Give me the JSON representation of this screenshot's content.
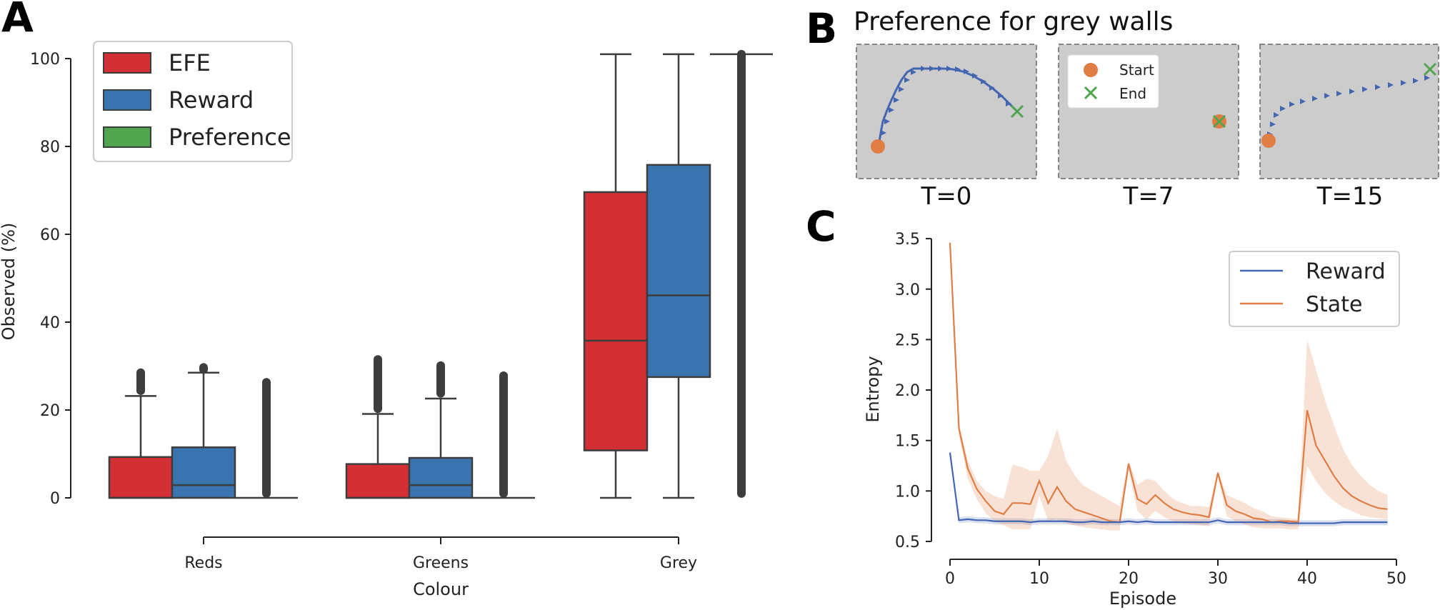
{
  "panels": {
    "a": {
      "letter": "A"
    },
    "b": {
      "letter": "B",
      "title": "Preference for grey walls",
      "snapshots": [
        {
          "label": "T=0"
        },
        {
          "label": "T=7"
        },
        {
          "label": "T=15"
        }
      ],
      "legend": {
        "start": "Start",
        "end": "End"
      }
    },
    "c": {
      "letter": "C"
    }
  },
  "colors": {
    "efe": "#d23034",
    "reward": "#3b75af",
    "preference": "#4fa64f",
    "state": "#e07d45",
    "reward_line": "#4466b0",
    "map_bg": "#cccccc",
    "traj": "#4466b0",
    "start": "#e07d45",
    "end": "#4fa64f"
  },
  "chart_data": [
    {
      "type": "box",
      "xlabel": "Colour",
      "ylabel": "Observed (%)",
      "ylim": [
        0,
        100
      ],
      "yticks": [
        0,
        20,
        40,
        60,
        80,
        100
      ],
      "categories": [
        "Reds",
        "Greens",
        "Grey"
      ],
      "legend": {
        "placement": "top-left",
        "entries": [
          "EFE",
          "Reward",
          "Preference"
        ]
      },
      "series": [
        {
          "name": "EFE",
          "boxes": [
            {
              "min": 0,
              "q1": 0,
              "median": 0,
              "q3": 9.3,
              "max": 23.2,
              "outliers_to": 28.5
            },
            {
              "min": 0,
              "q1": 0,
              "median": 0,
              "q3": 7.7,
              "max": 19.1,
              "outliers_to": 31.5
            },
            {
              "min": 0,
              "q1": 10.8,
              "median": 35.8,
              "q3": 69.6,
              "max": 101,
              "outliers_to": null
            }
          ]
        },
        {
          "name": "Reward",
          "boxes": [
            {
              "min": 0,
              "q1": 0,
              "median": 2.9,
              "q3": 11.5,
              "max": 28.5,
              "outliers_to": 29.2
            },
            {
              "min": 0,
              "q1": 0,
              "median": 2.9,
              "q3": 9.1,
              "max": 22.6,
              "outliers_to": 30.1
            },
            {
              "min": 0,
              "q1": 27.5,
              "median": 46.1,
              "q3": 75.8,
              "max": 101,
              "outliers_to": null
            }
          ]
        },
        {
          "name": "Preference",
          "boxes": [
            {
              "min": 0,
              "q1": 0,
              "median": 0,
              "q3": 0,
              "max": 0,
              "outliers_to": 26.3
            },
            {
              "min": 0,
              "q1": 0,
              "median": 0,
              "q3": 0,
              "max": 0,
              "outliers_to": 27.8
            },
            {
              "min": 101,
              "q1": 101,
              "median": 101,
              "q3": 101,
              "max": 101,
              "outliers_to": 0
            }
          ]
        }
      ]
    },
    {
      "type": "line",
      "xlabel": "Episode",
      "ylabel": "Entropy",
      "xlim": [
        0,
        50
      ],
      "ylim": [
        0.5,
        3.5
      ],
      "xticks": [
        0,
        10,
        20,
        30,
        40,
        50
      ],
      "yticks": [
        0.5,
        1.0,
        1.5,
        2.0,
        2.5,
        3.0,
        3.5
      ],
      "legend": {
        "placement": "top-right",
        "entries": [
          "Reward",
          "State"
        ]
      },
      "x": [
        0,
        1,
        2,
        3,
        4,
        5,
        6,
        7,
        8,
        9,
        10,
        11,
        12,
        13,
        14,
        15,
        16,
        17,
        18,
        19,
        20,
        21,
        22,
        23,
        24,
        25,
        26,
        27,
        28,
        29,
        30,
        31,
        32,
        33,
        34,
        35,
        36,
        37,
        38,
        39,
        40,
        41,
        42,
        43,
        44,
        45,
        46,
        47,
        48,
        49
      ],
      "series": [
        {
          "name": "Reward",
          "values": [
            1.38,
            0.71,
            0.72,
            0.71,
            0.71,
            0.7,
            0.7,
            0.7,
            0.7,
            0.69,
            0.7,
            0.7,
            0.7,
            0.7,
            0.69,
            0.69,
            0.7,
            0.69,
            0.69,
            0.69,
            0.7,
            0.69,
            0.7,
            0.69,
            0.69,
            0.69,
            0.69,
            0.69,
            0.69,
            0.69,
            0.71,
            0.69,
            0.69,
            0.69,
            0.69,
            0.69,
            0.69,
            0.69,
            0.68,
            0.68,
            0.68,
            0.68,
            0.68,
            0.68,
            0.69,
            0.69,
            0.69,
            0.69,
            0.69,
            0.69
          ],
          "band": 0.03
        },
        {
          "name": "State",
          "values": [
            3.46,
            1.62,
            1.22,
            1.02,
            0.9,
            0.8,
            0.77,
            0.88,
            0.88,
            0.87,
            1.1,
            0.88,
            1.04,
            0.9,
            0.82,
            0.79,
            0.76,
            0.73,
            0.7,
            0.69,
            1.27,
            0.92,
            0.87,
            0.96,
            0.88,
            0.82,
            0.79,
            0.77,
            0.76,
            0.74,
            1.18,
            0.86,
            0.8,
            0.77,
            0.73,
            0.72,
            0.69,
            0.7,
            0.7,
            0.69,
            1.8,
            1.45,
            1.3,
            1.15,
            1.03,
            0.95,
            0.9,
            0.86,
            0.83,
            0.82
          ],
          "upper": [
            3.5,
            1.66,
            1.3,
            1.1,
            1.0,
            0.95,
            0.92,
            1.26,
            1.24,
            1.2,
            1.2,
            1.35,
            1.62,
            1.3,
            1.15,
            1.05,
            1.0,
            0.95,
            0.9,
            0.85,
            1.3,
            1.06,
            1.12,
            1.1,
            1.0,
            0.92,
            0.88,
            0.85,
            0.85,
            0.84,
            1.2,
            0.96,
            0.92,
            0.88,
            0.83,
            0.8,
            0.75,
            0.74,
            0.73,
            0.72,
            2.5,
            2.2,
            1.9,
            1.65,
            1.42,
            1.26,
            1.15,
            1.06,
            1.0,
            0.96
          ],
          "lower": [
            3.4,
            1.55,
            1.12,
            0.92,
            0.78,
            0.7,
            0.66,
            0.62,
            0.62,
            0.62,
            0.95,
            0.7,
            0.72,
            0.68,
            0.66,
            0.64,
            0.63,
            0.62,
            0.61,
            0.61,
            1.2,
            0.8,
            0.72,
            0.8,
            0.74,
            0.7,
            0.68,
            0.67,
            0.66,
            0.65,
            1.14,
            0.75,
            0.7,
            0.67,
            0.64,
            0.63,
            0.63,
            0.63,
            0.62,
            0.62,
            1.25,
            1.1,
            0.98,
            0.9,
            0.84,
            0.8,
            0.76,
            0.74,
            0.73,
            0.72
          ]
        }
      ]
    }
  ]
}
